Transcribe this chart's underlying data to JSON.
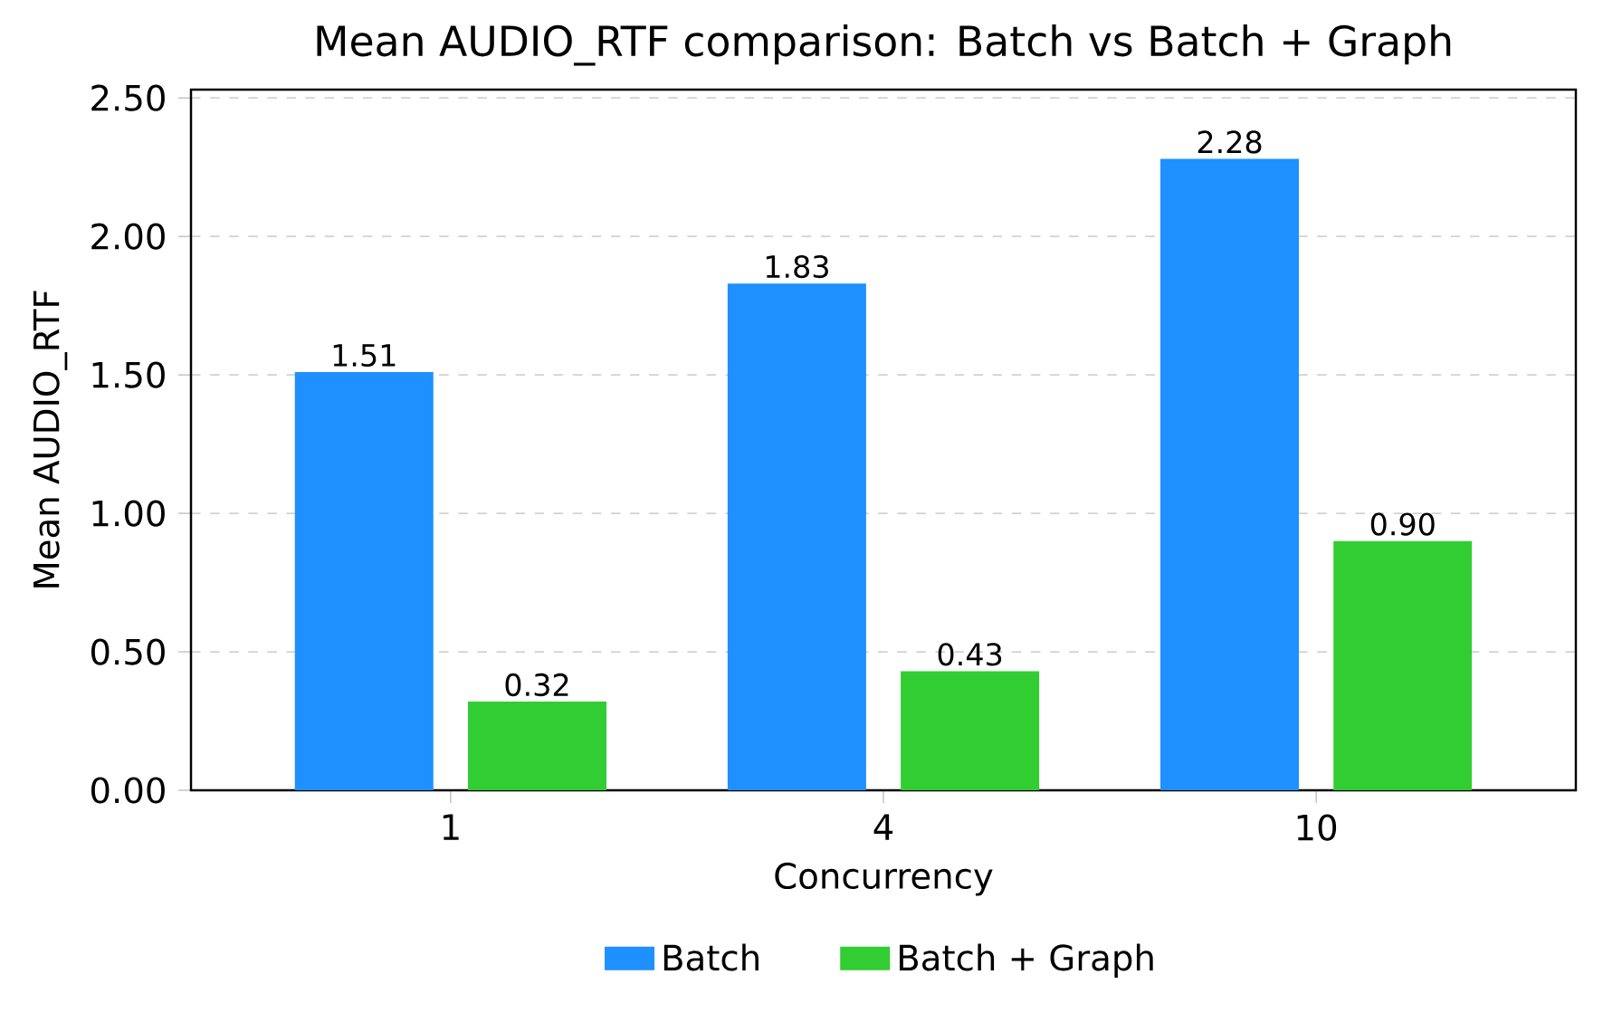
{
  "chart_data": {
    "type": "bar",
    "title": "Mean AUDIO_RTF comparison: Batch vs Batch + Graph",
    "xlabel": "Concurrency",
    "ylabel": "Mean AUDIO_RTF",
    "categories": [
      "1",
      "4",
      "10"
    ],
    "series": [
      {
        "name": "Batch",
        "color": "#1e90ff",
        "values": [
          1.51,
          1.83,
          2.28
        ],
        "value_labels": [
          "1.51",
          "1.83",
          "2.28"
        ]
      },
      {
        "name": "Batch + Graph",
        "color": "#32cd32",
        "values": [
          0.32,
          0.43,
          0.9
        ],
        "value_labels": [
          "0.32",
          "0.43",
          "0.90"
        ]
      }
    ],
    "ylim": [
      0,
      2.53
    ],
    "yticks": [
      {
        "value": 0,
        "label": "0.00"
      },
      {
        "value": 0.5,
        "label": "0.50"
      },
      {
        "value": 1,
        "label": "1.00"
      },
      {
        "value": 1.5,
        "label": "1.50"
      },
      {
        "value": 2,
        "label": "2.00"
      },
      {
        "value": 2.5,
        "label": "2.50"
      }
    ],
    "grid": "y",
    "legend": "bottom"
  }
}
